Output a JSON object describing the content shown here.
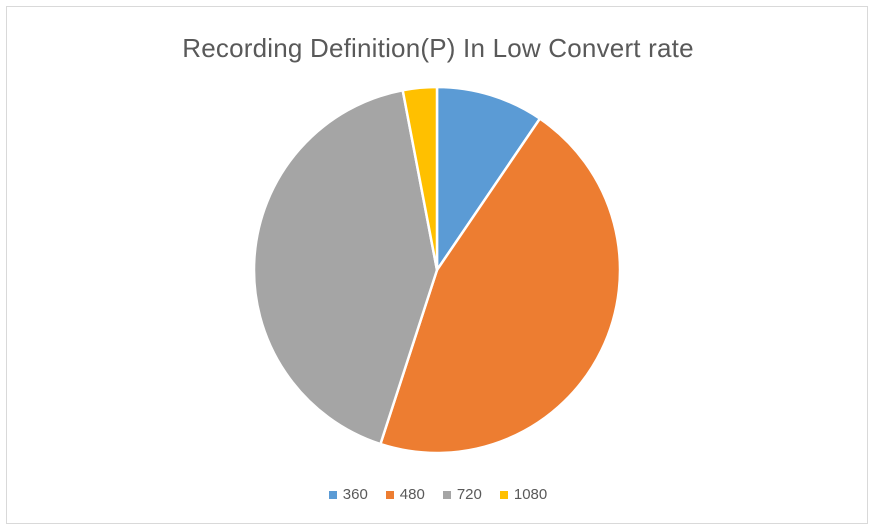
{
  "chart_data": {
    "type": "pie",
    "title": "Recording Definition(P) In Low Convert rate",
    "categories": [
      "360",
      "480",
      "720",
      "1080"
    ],
    "values": [
      9.5,
      45.5,
      42.0,
      3.0
    ],
    "colors": [
      "#5b9bd5",
      "#ed7d31",
      "#a5a5a5",
      "#ffc000"
    ],
    "legend_position": "bottom",
    "start_angle_deg": 0,
    "direction": "clockwise"
  }
}
